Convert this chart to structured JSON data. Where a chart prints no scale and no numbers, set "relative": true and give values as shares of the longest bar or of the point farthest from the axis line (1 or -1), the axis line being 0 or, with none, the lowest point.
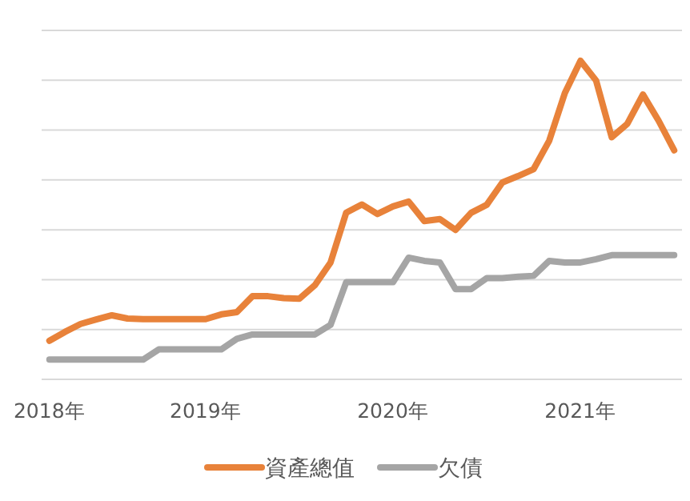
{
  "chart_data": {
    "type": "line",
    "relative": true,
    "grid": "y",
    "legend": "bottom",
    "line_style": "solid",
    "marker": "none",
    "categories": [
      "2018年",
      null,
      null,
      null,
      null,
      null,
      null,
      null,
      null,
      null,
      "2019年",
      null,
      null,
      null,
      null,
      null,
      null,
      null,
      null,
      null,
      null,
      null,
      "2020年",
      null,
      null,
      null,
      null,
      null,
      null,
      null,
      null,
      null,
      null,
      null,
      "2021年",
      null,
      null,
      null,
      null,
      null,
      null
    ],
    "series": [
      {
        "name": "資產總值",
        "color": "#e8823a",
        "values": [
          0.121,
          0.149,
          0.174,
          0.188,
          0.201,
          0.191,
          0.189,
          0.189,
          0.189,
          0.189,
          0.189,
          0.204,
          0.211,
          0.261,
          0.261,
          0.255,
          0.253,
          0.296,
          0.367,
          0.523,
          0.549,
          0.519,
          0.543,
          0.558,
          0.497,
          0.503,
          0.469,
          0.523,
          0.548,
          0.618,
          0.638,
          0.66,
          0.749,
          0.899,
          1,
          0.938,
          0.76,
          0.802,
          0.894,
          0.812,
          0.719
        ]
      },
      {
        "name": "欠債",
        "color": "#a5a5a5",
        "values": [
          0.062,
          0.062,
          0.062,
          0.062,
          0.062,
          0.062,
          0.062,
          0.094,
          0.094,
          0.094,
          0.094,
          0.094,
          0.127,
          0.141,
          0.141,
          0.141,
          0.141,
          0.141,
          0.171,
          0.305,
          0.305,
          0.305,
          0.305,
          0.382,
          0.372,
          0.367,
          0.283,
          0.283,
          0.318,
          0.318,
          0.322,
          0.325,
          0.372,
          0.367,
          0.367,
          0.377,
          0.39,
          0.39,
          0.39,
          0.39,
          0.39
        ]
      }
    ]
  }
}
